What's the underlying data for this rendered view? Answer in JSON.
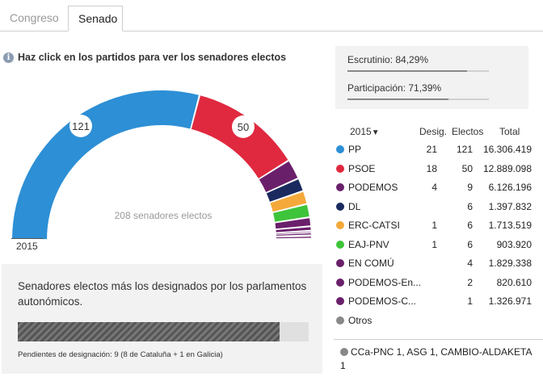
{
  "tabs": [
    {
      "label": "Congreso",
      "active": false
    },
    {
      "label": "Senado",
      "active": true
    }
  ],
  "instruction": "Haz click en los partidos para ver los senadores electos",
  "chart": {
    "center_label": "208 senadores electos",
    "year": "2015",
    "total_seats": 208,
    "pp_label": "121",
    "psoe_label": "50"
  },
  "designation": {
    "text": "Senadores electos más los designados por los parlamentos autonómicos.",
    "progress": 0.9,
    "note": "Pendientes de designación: 9 (8 de Cataluña + 1 en Galicia)"
  },
  "stats": {
    "escrutinio_label": "Escrutinio: 84,29%",
    "escrutinio_value": 0.8429,
    "participacion_label": "Participación: 71,39%",
    "participacion_value": 0.7139
  },
  "table": {
    "year": "2015",
    "arrow": "▼",
    "col_desig": "Desig.",
    "col_electos": "Electos",
    "col_total": "Total",
    "rows": [
      {
        "name": "PP",
        "desig": "21",
        "electos": "121",
        "total": "16.306.419",
        "color": "#2d8fd5"
      },
      {
        "name": "PSOE",
        "desig": "18",
        "electos": "50",
        "total": "12.889.098",
        "color": "#e0293f"
      },
      {
        "name": "PODEMOS",
        "desig": "4",
        "electos": "9",
        "total": "6.126.196",
        "color": "#6a1f6b"
      },
      {
        "name": "DL",
        "desig": "",
        "electos": "6",
        "total": "1.397.832",
        "color": "#1a2a5e"
      },
      {
        "name": "ERC-CATSI",
        "desig": "1",
        "electos": "6",
        "total": "1.713.519",
        "color": "#f5a93a"
      },
      {
        "name": "EAJ-PNV",
        "desig": "1",
        "electos": "6",
        "total": "903.920",
        "color": "#3ec43a"
      },
      {
        "name": "EN COMÚ",
        "desig": "",
        "electos": "4",
        "total": "1.829.338",
        "color": "#6a1f6b"
      },
      {
        "name": "PODEMOS-En...",
        "desig": "",
        "electos": "2",
        "total": "820.610",
        "color": "#6a1f6b"
      },
      {
        "name": "PODEMOS-C...",
        "desig": "",
        "electos": "1",
        "total": "1.326.971",
        "color": "#6a1f6b"
      },
      {
        "name": "Otros",
        "desig": "",
        "electos": "",
        "total": "",
        "color": "#888888"
      }
    ]
  },
  "others": {
    "text": "CCa-PNC 1, ASG 1, CAMBIO-ALDAKETA 1",
    "color": "#888888"
  }
}
